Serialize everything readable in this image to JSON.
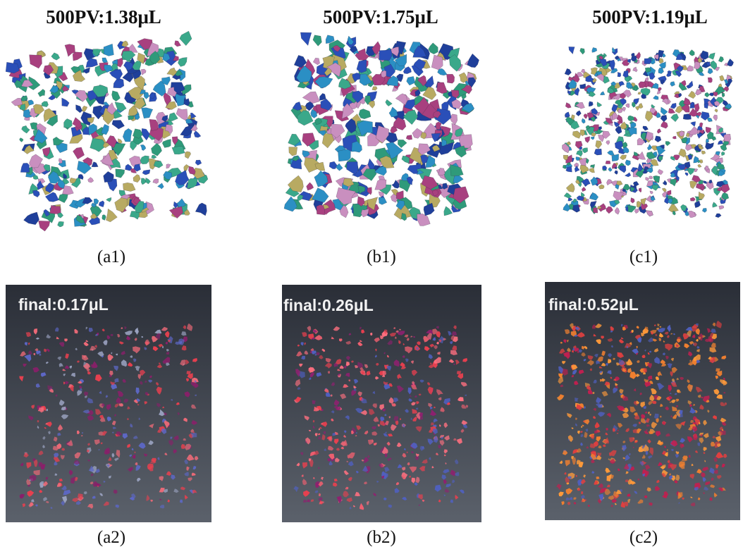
{
  "top": [
    {
      "title": "500PV:1.38μL",
      "caption": "(a1)"
    },
    {
      "title": "500PV:1.75μL",
      "caption": "(b1)"
    },
    {
      "title": "500PV:1.19μL",
      "caption": "(c1)"
    }
  ],
  "bottom": [
    {
      "label": "final:0.17μL",
      "caption": "(a2)"
    },
    {
      "label": "final:0.26μL",
      "caption": "(b2)"
    },
    {
      "label": "final:0.52μL",
      "caption": "(c2)"
    }
  ]
}
